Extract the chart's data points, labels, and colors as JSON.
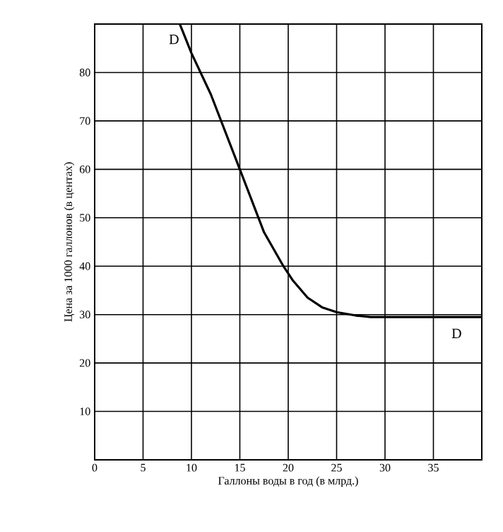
{
  "chart_data": {
    "type": "line",
    "xlabel": "Галлоны воды в год (в млрд.)",
    "ylabel": "Цена за 1000 галлонов (в центах)",
    "x": [
      8.8,
      10,
      12,
      15,
      17.5,
      19.5,
      20.5,
      22,
      23.5,
      25,
      27,
      28.5,
      30,
      35,
      40
    ],
    "series": [
      {
        "color": "#000000",
        "values": [
          90,
          84,
          75.5,
          60,
          47,
          40,
          37,
          33.5,
          31.5,
          30.5,
          29.8,
          29.5,
          29.5,
          29.5,
          29.5
        ]
      }
    ],
    "xlim": [
      0,
      40
    ],
    "ylim": [
      0,
      90
    ],
    "xticks": [
      0,
      5,
      10,
      15,
      20,
      25,
      30,
      35
    ],
    "yticks": [
      10,
      20,
      30,
      40,
      50,
      60,
      70,
      80
    ],
    "grid": true,
    "marker": "none",
    "line_style": "solid",
    "annotations": [
      "D",
      "D"
    ]
  }
}
